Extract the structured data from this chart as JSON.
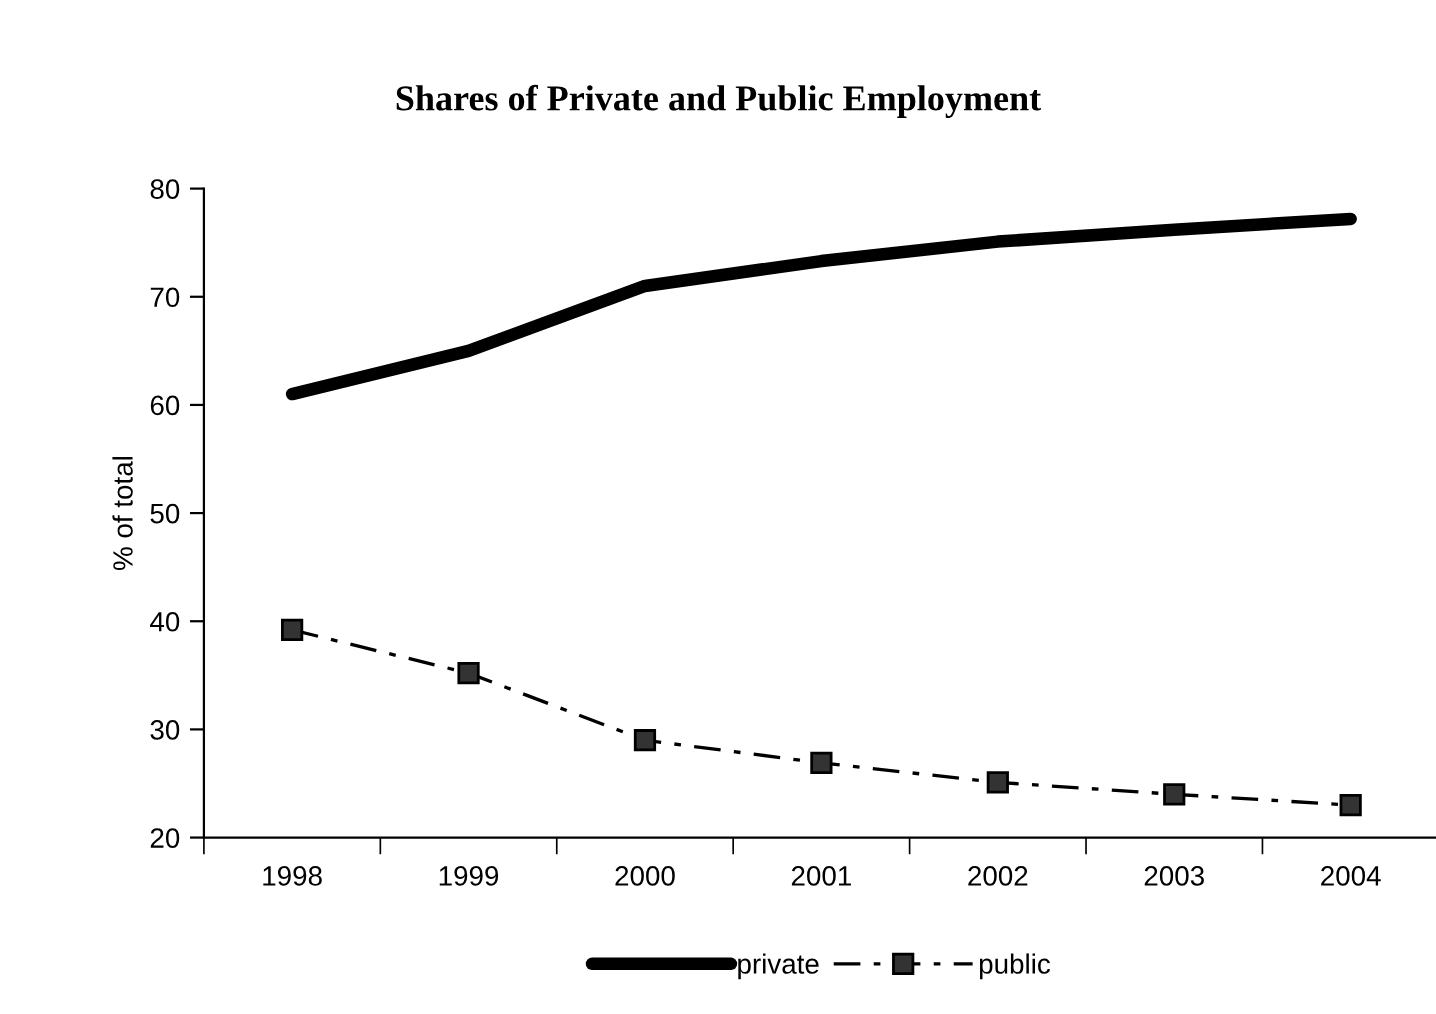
{
  "chart_data": {
    "type": "line",
    "title": "Shares of Private and Public Employment",
    "ylabel": "% of total",
    "categories": [
      "1998",
      "1999",
      "2000",
      "2001",
      "2002",
      "2003",
      "2004"
    ],
    "series": [
      {
        "name": "private",
        "color": "#000000",
        "values": [
          61,
          65,
          71,
          73.3,
          75.1,
          76.2,
          77.2
        ],
        "marker": "none",
        "line_style": "solid"
      },
      {
        "name": "public",
        "color": "#000000",
        "values": [
          39.2,
          35.2,
          29,
          26.9,
          25.1,
          24,
          23
        ],
        "marker": "square",
        "line_style": "dashdot"
      }
    ],
    "ylim": [
      20,
      80
    ],
    "yticks": [
      20,
      30,
      40,
      50,
      60,
      70,
      80
    ],
    "grid": false,
    "legend": "bottom"
  }
}
